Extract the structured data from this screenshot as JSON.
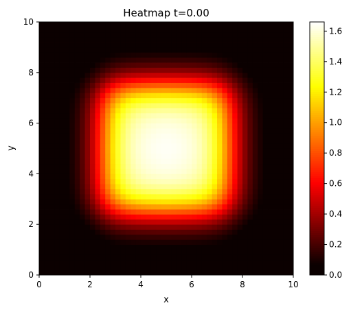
{
  "chart_data": {
    "type": "heatmap",
    "title": "Heatmap t=0.00",
    "xlabel": "x",
    "ylabel": "y",
    "xlim": [
      0,
      10
    ],
    "ylim": [
      0,
      10
    ],
    "xticks": [
      "0",
      "2",
      "4",
      "6",
      "8",
      "10"
    ],
    "yticks": [
      "0",
      "2",
      "4",
      "6",
      "8",
      "10"
    ],
    "grid_resolution": [
      50,
      50
    ],
    "field": {
      "description_type": "smoothed-square",
      "center": [
        5,
        5
      ],
      "half_width": 2.5,
      "edge_width": 0.45,
      "max_value": 1.66
    },
    "colormap": "hot",
    "colorbar": {
      "range": [
        0,
        1.66
      ],
      "ticks": [
        "0.0",
        "0.2",
        "0.4",
        "0.6",
        "0.8",
        "1.0",
        "1.2",
        "1.4",
        "1.6"
      ]
    },
    "grid": false
  }
}
